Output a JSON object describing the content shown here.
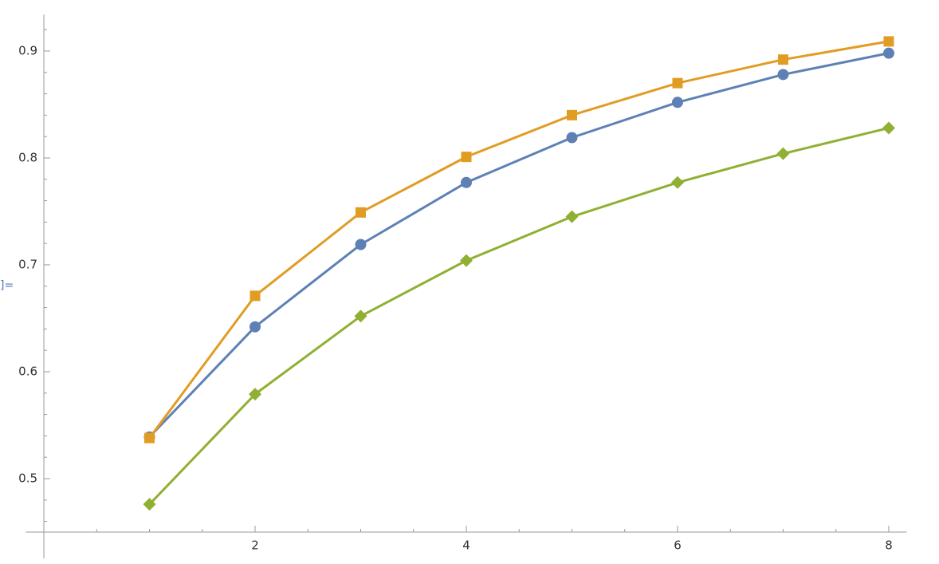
{
  "cell_label": "]=",
  "chart_data": {
    "type": "line",
    "x": [
      1,
      2,
      3,
      4,
      5,
      6,
      7,
      8
    ],
    "series": [
      {
        "color": "#5e81b5",
        "marker": "circle",
        "values": [
          0.539,
          0.642,
          0.719,
          0.777,
          0.819,
          0.852,
          0.878,
          0.898
        ]
      },
      {
        "color": "#e19c24",
        "marker": "square",
        "values": [
          0.538,
          0.671,
          0.749,
          0.801,
          0.84,
          0.87,
          0.892,
          0.909
        ]
      },
      {
        "color": "#8fb032",
        "marker": "diamond",
        "values": [
          0.476,
          0.579,
          0.652,
          0.704,
          0.745,
          0.777,
          0.804,
          0.828
        ]
      }
    ],
    "xlim": [
      -0.17,
      8.17
    ],
    "ylim": [
      0.45,
      0.934
    ],
    "xticks": [
      2,
      4,
      6,
      8
    ],
    "yticks": [
      0.5,
      0.6,
      0.7,
      0.8,
      0.9
    ],
    "xminorticks": [
      0.5,
      1,
      1.5,
      2.5,
      3,
      3.5,
      4.5,
      5,
      5.5,
      6.5,
      7,
      7.5
    ],
    "yminorticks": [
      0.46,
      0.48,
      0.52,
      0.54,
      0.56,
      0.58,
      0.62,
      0.64,
      0.66,
      0.68,
      0.72,
      0.74,
      0.76,
      0.78,
      0.82,
      0.84,
      0.86,
      0.88,
      0.92
    ],
    "grid": false
  }
}
